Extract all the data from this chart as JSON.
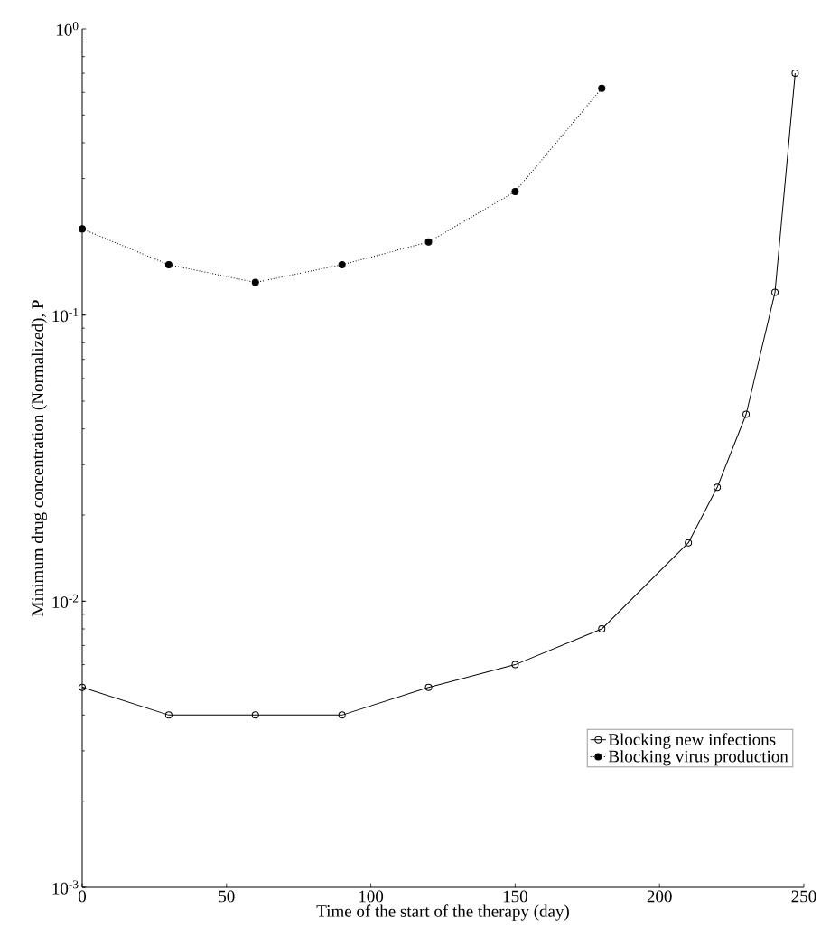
{
  "chart_data": {
    "type": "line",
    "xlabel": "Time of the start of the therapy (day)",
    "ylabel": "Minimum drug concentration (Normalized), P",
    "log": "y",
    "xlim": [
      0,
      250
    ],
    "ylim": [
      0.001,
      1
    ],
    "xticks": [
      0,
      50,
      100,
      150,
      200,
      250
    ],
    "yticks": [
      {
        "value": 0.001,
        "label": "10$^{-3}$"
      },
      {
        "value": 0.01,
        "label": "10$^{-2}$"
      },
      {
        "value": 0.1,
        "label": "10$^{-1}$"
      },
      {
        "value": 1,
        "label": "10$^{0}$"
      }
    ],
    "grid": false,
    "legend": "bottom right",
    "series": [
      {
        "name": "Blocking new infections",
        "color": "#000000",
        "marker": "circle",
        "line_style": "solid",
        "x": [
          0,
          30,
          60,
          90,
          120,
          150,
          180,
          210,
          220,
          230,
          240,
          247
        ],
        "values": [
          0.005,
          0.004,
          0.004,
          0.004,
          0.005,
          0.006,
          0.008,
          0.016,
          0.025,
          0.045,
          0.12,
          0.7
        ]
      },
      {
        "name": "Blocking virus production",
        "color": "#000000",
        "marker": "filled circle",
        "line_style": "dotted",
        "x": [
          0,
          30,
          60,
          90,
          120,
          150,
          180
        ],
        "values": [
          0.2,
          0.15,
          0.13,
          0.15,
          0.18,
          0.27,
          0.62
        ]
      }
    ]
  }
}
